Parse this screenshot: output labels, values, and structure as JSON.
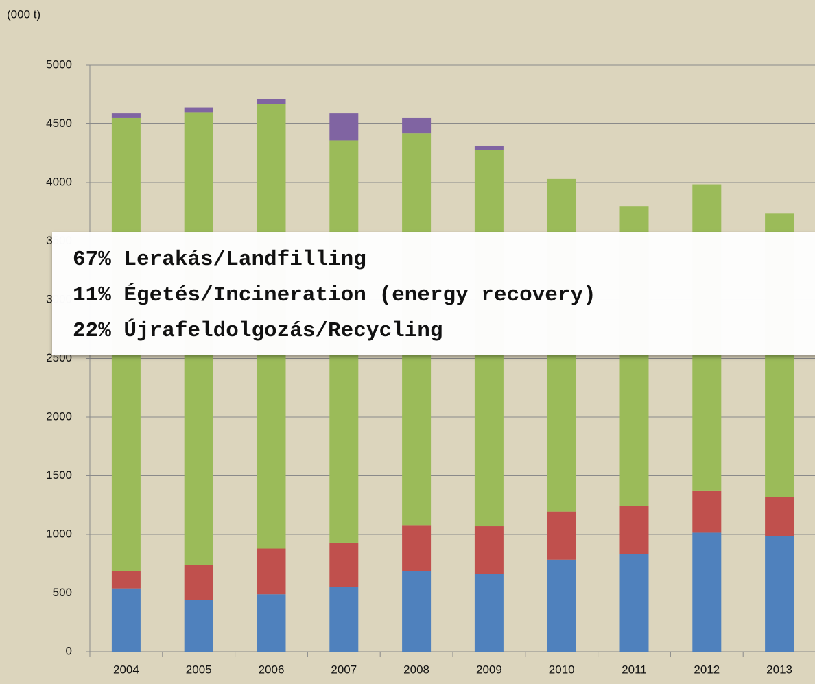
{
  "chart_data": {
    "type": "stacked-bar",
    "y_label": "(000 t)",
    "categories": [
      "2004",
      "2005",
      "2006",
      "2007",
      "2008",
      "2009",
      "2010",
      "2011",
      "2012",
      "2013"
    ],
    "series": [
      {
        "color": "#4f81bd",
        "values": [
          540,
          440,
          490,
          550,
          690,
          665,
          785,
          835,
          1015,
          985
        ]
      },
      {
        "color": "#c0504d",
        "values": [
          150,
          300,
          390,
          380,
          390,
          405,
          410,
          405,
          360,
          335
        ]
      },
      {
        "color": "#9bbb59",
        "values": [
          3860,
          3860,
          3790,
          3430,
          3340,
          3210,
          2835,
          2560,
          2610,
          2415
        ]
      },
      {
        "color": "#8064a2",
        "values": [
          40,
          40,
          40,
          230,
          130,
          30,
          0,
          0,
          0,
          0
        ]
      }
    ],
    "ylim": [
      0,
      5000
    ],
    "yticks": [
      0,
      500,
      1000,
      1500,
      2000,
      2500,
      3000,
      3500,
      4000,
      4500,
      5000
    ],
    "grid": true
  },
  "overlay": {
    "lines": [
      "67% Lerakás/Landfilling",
      "11% Égetés/Incineration (energy recovery)",
      "22% Újrafeldolgozás/Recycling"
    ]
  }
}
